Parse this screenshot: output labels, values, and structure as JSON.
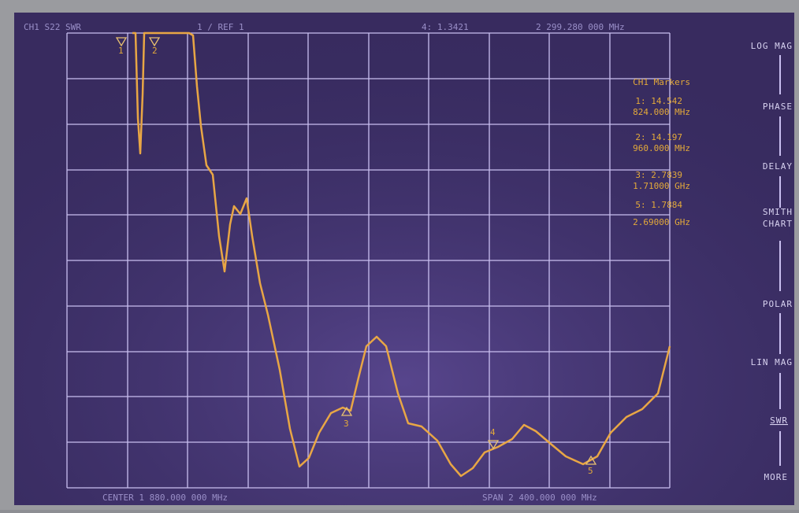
{
  "header": {
    "channel": "CH1 S22 SWR",
    "scale": "1 / REF 1",
    "active_marker": "4: 1.3421",
    "active_frequency": "2 299.280 000 MHz"
  },
  "marker_panel": {
    "title": "CH1 Markers",
    "markers": [
      {
        "value": "1: 14.542",
        "frequency": "824.000 MHz"
      },
      {
        "value": "2: 14.197",
        "frequency": "960.000 MHz"
      },
      {
        "value": "3: 2.7839",
        "frequency": "1.71000 GHz"
      },
      {
        "value": "5: 1.7884",
        "frequency": "2.69000 GHz"
      }
    ]
  },
  "softkeys": [
    "LOG MAG",
    "PHASE",
    "DELAY",
    "SMITH CHART",
    "POLAR",
    "LIN MAG",
    "SWR",
    "MORE"
  ],
  "trace_markers": [
    "1",
    "2",
    "3",
    "4",
    "5"
  ],
  "footer": {
    "center": "CENTER 1 880.000 000 MHz",
    "span": "SPAN 2 400.000 000 MHz"
  }
}
